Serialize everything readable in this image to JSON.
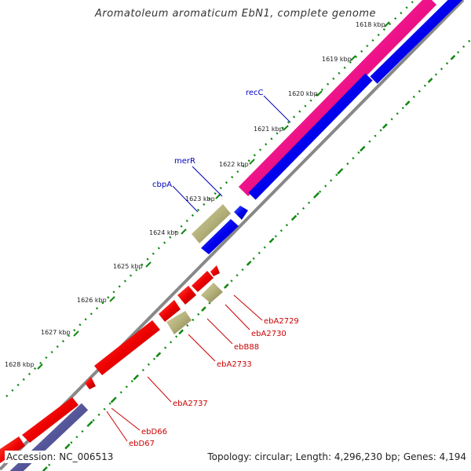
{
  "title": "Aromatoleum aromaticum EbN1, complete genome",
  "footer": {
    "accession": "Accession: NC_006513",
    "summary": "Topology: circular; Length: 4,296,230 bp; Genes: 4,194"
  },
  "ticks": [
    "1618 kbp",
    "1619 kbp",
    "1620 kbp",
    "1621 kbp",
    "1622 kbp",
    "1623 kbp",
    "1624 kbp",
    "1625 kbp",
    "1626 kbp",
    "1627 kbp",
    "1628 kbp"
  ],
  "colors": {
    "forward_cds": "#0000ee",
    "reverse_cds": "#ee0000",
    "rrna_band": "#ee1188",
    "rna_gene": "#b4b07a",
    "backbone": "#888888",
    "gc_ticks": "#118811",
    "forward_label": "#0000bb",
    "reverse_label": "#cc0000",
    "bottom_band": "#55559a"
  },
  "gene_labels": {
    "forward": [
      "recC",
      "merR",
      "cbpA"
    ],
    "reverse": [
      "ebA2729",
      "ebA2730",
      "ebB88",
      "ebA2733",
      "ebA2737",
      "ebD66",
      "ebD67"
    ]
  }
}
